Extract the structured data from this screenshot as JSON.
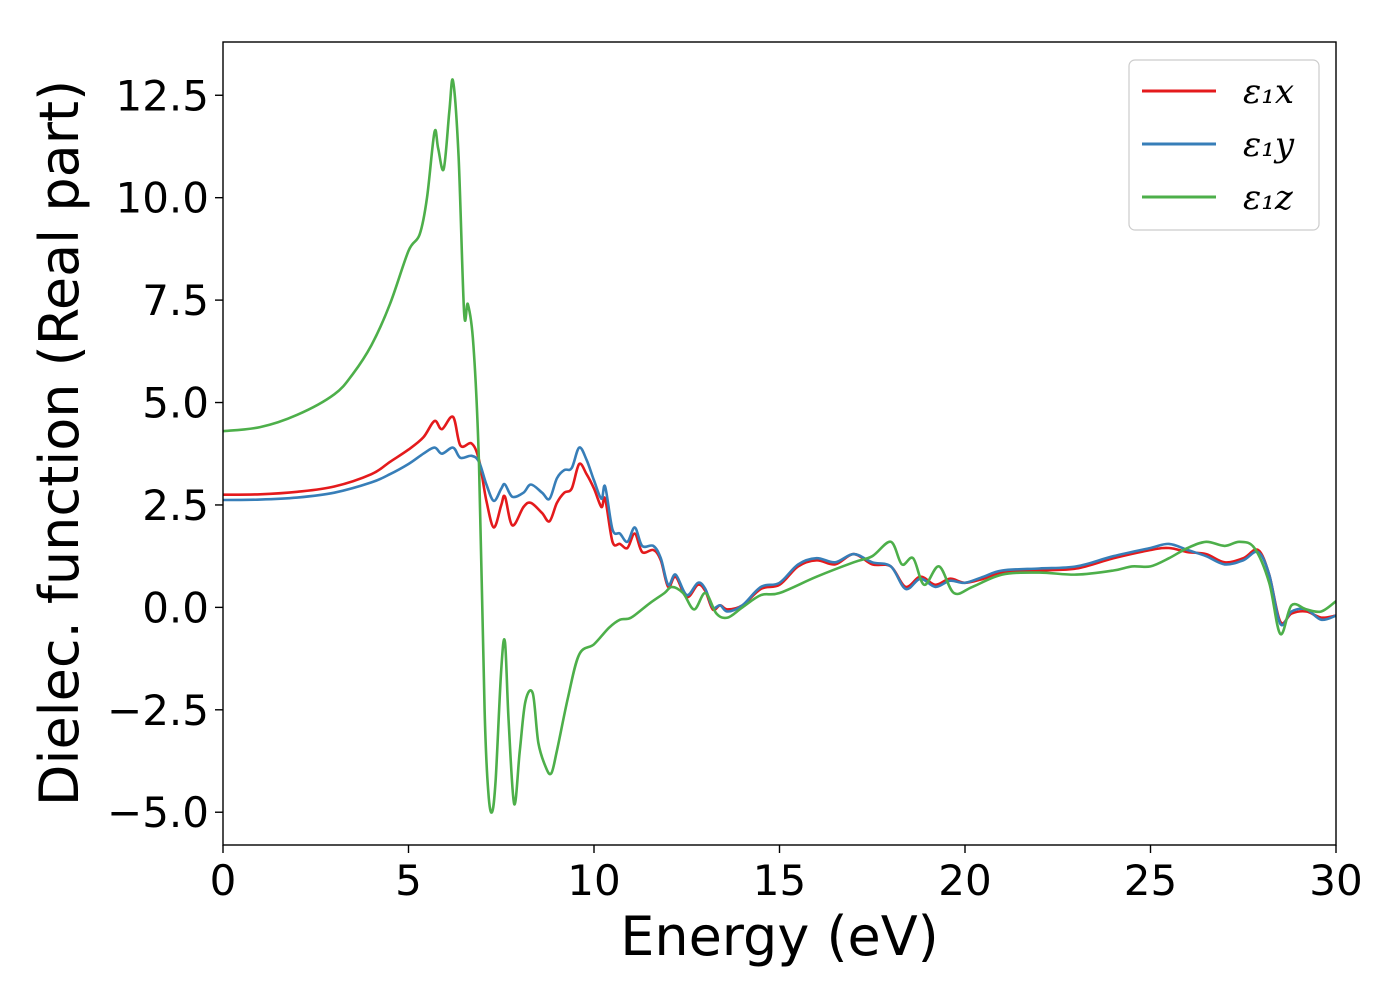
{
  "chart_data": {
    "type": "line",
    "title": "",
    "xlabel": "Energy (eV)",
    "ylabel": "Dielec. function (Real part)",
    "xlim": [
      0,
      30
    ],
    "ylim": [
      -5.8,
      13.8
    ],
    "xticks": [
      0,
      5,
      10,
      15,
      20,
      25,
      30
    ],
    "xtick_labels": [
      "0",
      "5",
      "10",
      "15",
      "20",
      "25",
      "30"
    ],
    "yticks": [
      -5.0,
      -2.5,
      0.0,
      2.5,
      5.0,
      7.5,
      10.0,
      12.5
    ],
    "ytick_labels": [
      "−5.0",
      "−2.5",
      "0.0",
      "2.5",
      "5.0",
      "7.5",
      "10.0",
      "12.5"
    ],
    "grid": false,
    "legend_position": "top-right",
    "series": [
      {
        "name": "ε₁x",
        "color": "#e41a1c",
        "points": [
          [
            0,
            2.75
          ],
          [
            1,
            2.76
          ],
          [
            2,
            2.82
          ],
          [
            3,
            2.95
          ],
          [
            4,
            3.25
          ],
          [
            4.5,
            3.55
          ],
          [
            5,
            3.85
          ],
          [
            5.4,
            4.15
          ],
          [
            5.7,
            4.55
          ],
          [
            5.9,
            4.35
          ],
          [
            6.2,
            4.65
          ],
          [
            6.4,
            3.95
          ],
          [
            6.7,
            4.0
          ],
          [
            6.9,
            3.6
          ],
          [
            7.1,
            2.6
          ],
          [
            7.3,
            1.95
          ],
          [
            7.5,
            2.5
          ],
          [
            7.6,
            2.7
          ],
          [
            7.8,
            2.0
          ],
          [
            8.1,
            2.45
          ],
          [
            8.3,
            2.55
          ],
          [
            8.6,
            2.3
          ],
          [
            8.8,
            2.1
          ],
          [
            9.0,
            2.55
          ],
          [
            9.2,
            2.8
          ],
          [
            9.4,
            2.9
          ],
          [
            9.6,
            3.5
          ],
          [
            9.8,
            3.25
          ],
          [
            10.0,
            2.9
          ],
          [
            10.2,
            2.45
          ],
          [
            10.3,
            2.65
          ],
          [
            10.5,
            1.6
          ],
          [
            10.7,
            1.55
          ],
          [
            10.9,
            1.45
          ],
          [
            11.1,
            1.8
          ],
          [
            11.3,
            1.35
          ],
          [
            11.6,
            1.4
          ],
          [
            11.8,
            1.15
          ],
          [
            12.0,
            0.5
          ],
          [
            12.2,
            0.75
          ],
          [
            12.5,
            0.25
          ],
          [
            12.8,
            0.55
          ],
          [
            13.0,
            0.4
          ],
          [
            13.2,
            -0.05
          ],
          [
            13.4,
            0.05
          ],
          [
            13.6,
            -0.05
          ],
          [
            14.0,
            0.05
          ],
          [
            14.5,
            0.45
          ],
          [
            15.0,
            0.55
          ],
          [
            15.5,
            1.0
          ],
          [
            16.0,
            1.15
          ],
          [
            16.5,
            1.05
          ],
          [
            17.0,
            1.3
          ],
          [
            17.5,
            1.05
          ],
          [
            18.0,
            1.0
          ],
          [
            18.4,
            0.5
          ],
          [
            18.8,
            0.75
          ],
          [
            19.2,
            0.55
          ],
          [
            19.6,
            0.7
          ],
          [
            20.0,
            0.6
          ],
          [
            20.5,
            0.7
          ],
          [
            21.0,
            0.85
          ],
          [
            22.0,
            0.9
          ],
          [
            23.0,
            0.95
          ],
          [
            24.0,
            1.2
          ],
          [
            25.0,
            1.4
          ],
          [
            25.5,
            1.45
          ],
          [
            26.0,
            1.35
          ],
          [
            26.5,
            1.3
          ],
          [
            27.0,
            1.1
          ],
          [
            27.5,
            1.2
          ],
          [
            27.9,
            1.4
          ],
          [
            28.2,
            0.8
          ],
          [
            28.5,
            -0.35
          ],
          [
            28.8,
            -0.15
          ],
          [
            29.2,
            -0.1
          ],
          [
            29.6,
            -0.25
          ],
          [
            30,
            -0.2
          ]
        ]
      },
      {
        "name": "ε₁y",
        "color": "#377eb8",
        "points": [
          [
            0,
            2.62
          ],
          [
            1,
            2.63
          ],
          [
            2,
            2.68
          ],
          [
            3,
            2.8
          ],
          [
            4,
            3.05
          ],
          [
            4.5,
            3.25
          ],
          [
            5,
            3.5
          ],
          [
            5.4,
            3.75
          ],
          [
            5.7,
            3.9
          ],
          [
            5.9,
            3.75
          ],
          [
            6.2,
            3.9
          ],
          [
            6.4,
            3.65
          ],
          [
            6.7,
            3.7
          ],
          [
            6.9,
            3.55
          ],
          [
            7.1,
            3.0
          ],
          [
            7.3,
            2.6
          ],
          [
            7.5,
            2.9
          ],
          [
            7.6,
            3.0
          ],
          [
            7.8,
            2.7
          ],
          [
            8.1,
            2.8
          ],
          [
            8.3,
            3.0
          ],
          [
            8.6,
            2.8
          ],
          [
            8.8,
            2.65
          ],
          [
            9.0,
            3.15
          ],
          [
            9.2,
            3.35
          ],
          [
            9.4,
            3.4
          ],
          [
            9.6,
            3.9
          ],
          [
            9.8,
            3.6
          ],
          [
            10.0,
            3.1
          ],
          [
            10.2,
            2.65
          ],
          [
            10.3,
            2.95
          ],
          [
            10.5,
            1.9
          ],
          [
            10.7,
            1.8
          ],
          [
            10.9,
            1.6
          ],
          [
            11.1,
            1.95
          ],
          [
            11.3,
            1.5
          ],
          [
            11.6,
            1.5
          ],
          [
            11.8,
            1.2
          ],
          [
            12.0,
            0.55
          ],
          [
            12.2,
            0.8
          ],
          [
            12.5,
            0.3
          ],
          [
            12.8,
            0.6
          ],
          [
            13.0,
            0.45
          ],
          [
            13.2,
            0.0
          ],
          [
            13.4,
            0.05
          ],
          [
            13.6,
            -0.1
          ],
          [
            14.0,
            0.05
          ],
          [
            14.5,
            0.5
          ],
          [
            15.0,
            0.6
          ],
          [
            15.5,
            1.05
          ],
          [
            16.0,
            1.2
          ],
          [
            16.5,
            1.1
          ],
          [
            17.0,
            1.3
          ],
          [
            17.5,
            1.1
          ],
          [
            18.0,
            1.0
          ],
          [
            18.4,
            0.45
          ],
          [
            18.8,
            0.7
          ],
          [
            19.2,
            0.5
          ],
          [
            19.6,
            0.65
          ],
          [
            20.0,
            0.6
          ],
          [
            20.5,
            0.75
          ],
          [
            21.0,
            0.9
          ],
          [
            22.0,
            0.95
          ],
          [
            23.0,
            1.0
          ],
          [
            24.0,
            1.25
          ],
          [
            25.0,
            1.45
          ],
          [
            25.5,
            1.55
          ],
          [
            26.0,
            1.4
          ],
          [
            26.5,
            1.25
          ],
          [
            27.0,
            1.05
          ],
          [
            27.5,
            1.15
          ],
          [
            27.9,
            1.35
          ],
          [
            28.2,
            0.8
          ],
          [
            28.5,
            -0.4
          ],
          [
            28.8,
            -0.1
          ],
          [
            29.2,
            -0.05
          ],
          [
            29.6,
            -0.3
          ],
          [
            30,
            -0.2
          ]
        ]
      },
      {
        "name": "ε₁z",
        "color": "#4daf4a",
        "points": [
          [
            0,
            4.3
          ],
          [
            1,
            4.4
          ],
          [
            2,
            4.7
          ],
          [
            3,
            5.2
          ],
          [
            3.5,
            5.7
          ],
          [
            4,
            6.4
          ],
          [
            4.5,
            7.4
          ],
          [
            5,
            8.7
          ],
          [
            5.3,
            9.1
          ],
          [
            5.5,
            10.0
          ],
          [
            5.7,
            11.6
          ],
          [
            5.8,
            11.2
          ],
          [
            5.95,
            10.7
          ],
          [
            6.1,
            12.1
          ],
          [
            6.2,
            12.85
          ],
          [
            6.35,
            11.0
          ],
          [
            6.5,
            7.2
          ],
          [
            6.6,
            7.4
          ],
          [
            6.75,
            6.4
          ],
          [
            6.9,
            3.5
          ],
          [
            7.05,
            -2.5
          ],
          [
            7.15,
            -4.5
          ],
          [
            7.25,
            -5.0
          ],
          [
            7.35,
            -4.2
          ],
          [
            7.5,
            -1.5
          ],
          [
            7.6,
            -0.85
          ],
          [
            7.7,
            -2.8
          ],
          [
            7.85,
            -4.8
          ],
          [
            8.0,
            -3.5
          ],
          [
            8.15,
            -2.3
          ],
          [
            8.35,
            -2.1
          ],
          [
            8.5,
            -3.3
          ],
          [
            8.7,
            -3.9
          ],
          [
            8.85,
            -4.05
          ],
          [
            9.0,
            -3.5
          ],
          [
            9.3,
            -2.2
          ],
          [
            9.6,
            -1.15
          ],
          [
            10.0,
            -0.9
          ],
          [
            10.4,
            -0.5
          ],
          [
            10.7,
            -0.3
          ],
          [
            11.0,
            -0.25
          ],
          [
            11.5,
            0.1
          ],
          [
            11.9,
            0.35
          ],
          [
            12.1,
            0.5
          ],
          [
            12.4,
            0.35
          ],
          [
            12.7,
            -0.05
          ],
          [
            13.0,
            0.35
          ],
          [
            13.3,
            -0.15
          ],
          [
            13.6,
            -0.25
          ],
          [
            14.0,
            0.0
          ],
          [
            14.5,
            0.3
          ],
          [
            15.0,
            0.35
          ],
          [
            16.0,
            0.75
          ],
          [
            17.0,
            1.1
          ],
          [
            17.5,
            1.25
          ],
          [
            18.0,
            1.6
          ],
          [
            18.3,
            1.05
          ],
          [
            18.6,
            1.2
          ],
          [
            18.9,
            0.55
          ],
          [
            19.3,
            1.0
          ],
          [
            19.7,
            0.35
          ],
          [
            20.2,
            0.5
          ],
          [
            21.0,
            0.8
          ],
          [
            22.0,
            0.85
          ],
          [
            23.0,
            0.8
          ],
          [
            24.0,
            0.9
          ],
          [
            24.5,
            1.0
          ],
          [
            25.0,
            1.0
          ],
          [
            25.5,
            1.2
          ],
          [
            26.0,
            1.45
          ],
          [
            26.5,
            1.6
          ],
          [
            27.0,
            1.5
          ],
          [
            27.4,
            1.6
          ],
          [
            27.8,
            1.45
          ],
          [
            28.2,
            0.6
          ],
          [
            28.5,
            -0.65
          ],
          [
            28.8,
            0.05
          ],
          [
            29.2,
            -0.05
          ],
          [
            29.6,
            -0.1
          ],
          [
            30,
            0.15
          ]
        ]
      }
    ]
  }
}
